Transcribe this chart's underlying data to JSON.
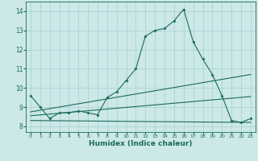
{
  "xlabel": "Humidex (Indice chaleur)",
  "bg_color": "#cce8e8",
  "line_color": "#1a6b5a",
  "xlim": [
    -0.5,
    23.5
  ],
  "ylim": [
    7.7,
    14.5
  ],
  "xticks": [
    0,
    1,
    2,
    3,
    4,
    5,
    6,
    7,
    8,
    9,
    10,
    11,
    12,
    13,
    14,
    15,
    16,
    17,
    18,
    19,
    20,
    21,
    22,
    23
  ],
  "yticks": [
    8,
    9,
    10,
    11,
    12,
    13,
    14
  ],
  "grid_color": "#aad4d4",
  "main_series_x": [
    0,
    1,
    2,
    3,
    4,
    5,
    6,
    7,
    8,
    9,
    10,
    11,
    12,
    13,
    14,
    15,
    16,
    17,
    18,
    19,
    20,
    21,
    22,
    23
  ],
  "main_series_y": [
    9.6,
    9.0,
    8.4,
    8.7,
    8.7,
    8.8,
    8.7,
    8.6,
    9.5,
    9.8,
    10.4,
    11.0,
    12.7,
    13.0,
    13.1,
    13.5,
    14.1,
    12.4,
    11.5,
    10.7,
    9.6,
    8.3,
    8.2,
    8.4
  ],
  "line1_x": [
    0,
    23
  ],
  "line1_y": [
    8.75,
    10.7
  ],
  "line2_x": [
    0,
    23
  ],
  "line2_y": [
    8.3,
    8.2
  ],
  "line3_x": [
    0,
    23
  ],
  "line3_y": [
    8.55,
    9.55
  ],
  "tick_fontsize": 5.5,
  "xlabel_fontsize": 6.5
}
